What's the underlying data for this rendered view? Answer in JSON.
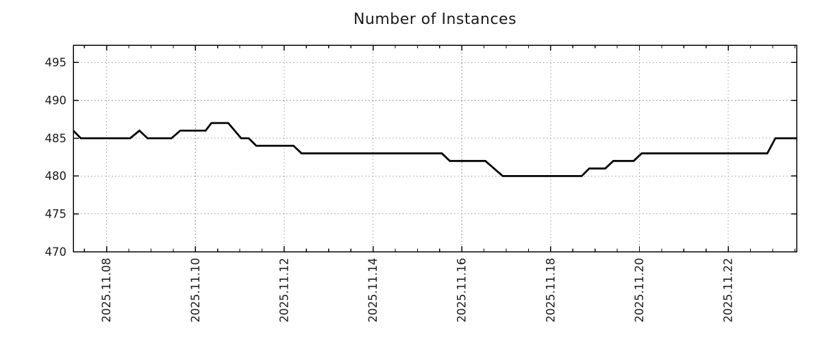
{
  "chart_data": {
    "type": "line",
    "title": "Number of Instances",
    "xlabel": "",
    "ylabel": "",
    "legend": "none",
    "grid": "dotted-major",
    "x_unit": "date (day of 2025-11)",
    "xlim_days": [
      7.25,
      23.54
    ],
    "ylim": [
      470,
      497.3
    ],
    "y_ticks": [
      470,
      475,
      480,
      485,
      490,
      495
    ],
    "x_major_days": [
      8,
      10,
      12,
      14,
      16,
      18,
      20,
      22
    ],
    "x_tick_labels": [
      "2025.11.08",
      "2025.11.10",
      "2025.11.12",
      "2025.11.14",
      "2025.11.16",
      "2025.11.18",
      "2025.11.20",
      "2025.11.22"
    ],
    "x_minor_step_days": 0.5,
    "colors": {
      "line": "#000000",
      "grid": "#9e9e9e",
      "axis": "#000000",
      "text": "#1a1a1a"
    },
    "series": [
      {
        "name": "instances",
        "points": [
          [
            7.25,
            486
          ],
          [
            7.42,
            485
          ],
          [
            8.53,
            485
          ],
          [
            8.74,
            486
          ],
          [
            8.92,
            485
          ],
          [
            9.46,
            485
          ],
          [
            9.66,
            486
          ],
          [
            10.23,
            486
          ],
          [
            10.36,
            487
          ],
          [
            10.74,
            487
          ],
          [
            11.03,
            485
          ],
          [
            11.2,
            485
          ],
          [
            11.37,
            484
          ],
          [
            12.21,
            484
          ],
          [
            12.39,
            483
          ],
          [
            15.55,
            483
          ],
          [
            15.73,
            482
          ],
          [
            16.53,
            482
          ],
          [
            16.92,
            480
          ],
          [
            18.7,
            480
          ],
          [
            18.87,
            481
          ],
          [
            19.23,
            481
          ],
          [
            19.41,
            482
          ],
          [
            19.87,
            482
          ],
          [
            20.05,
            483
          ],
          [
            22.88,
            483
          ],
          [
            23.06,
            485
          ],
          [
            23.54,
            485
          ]
        ]
      }
    ]
  }
}
